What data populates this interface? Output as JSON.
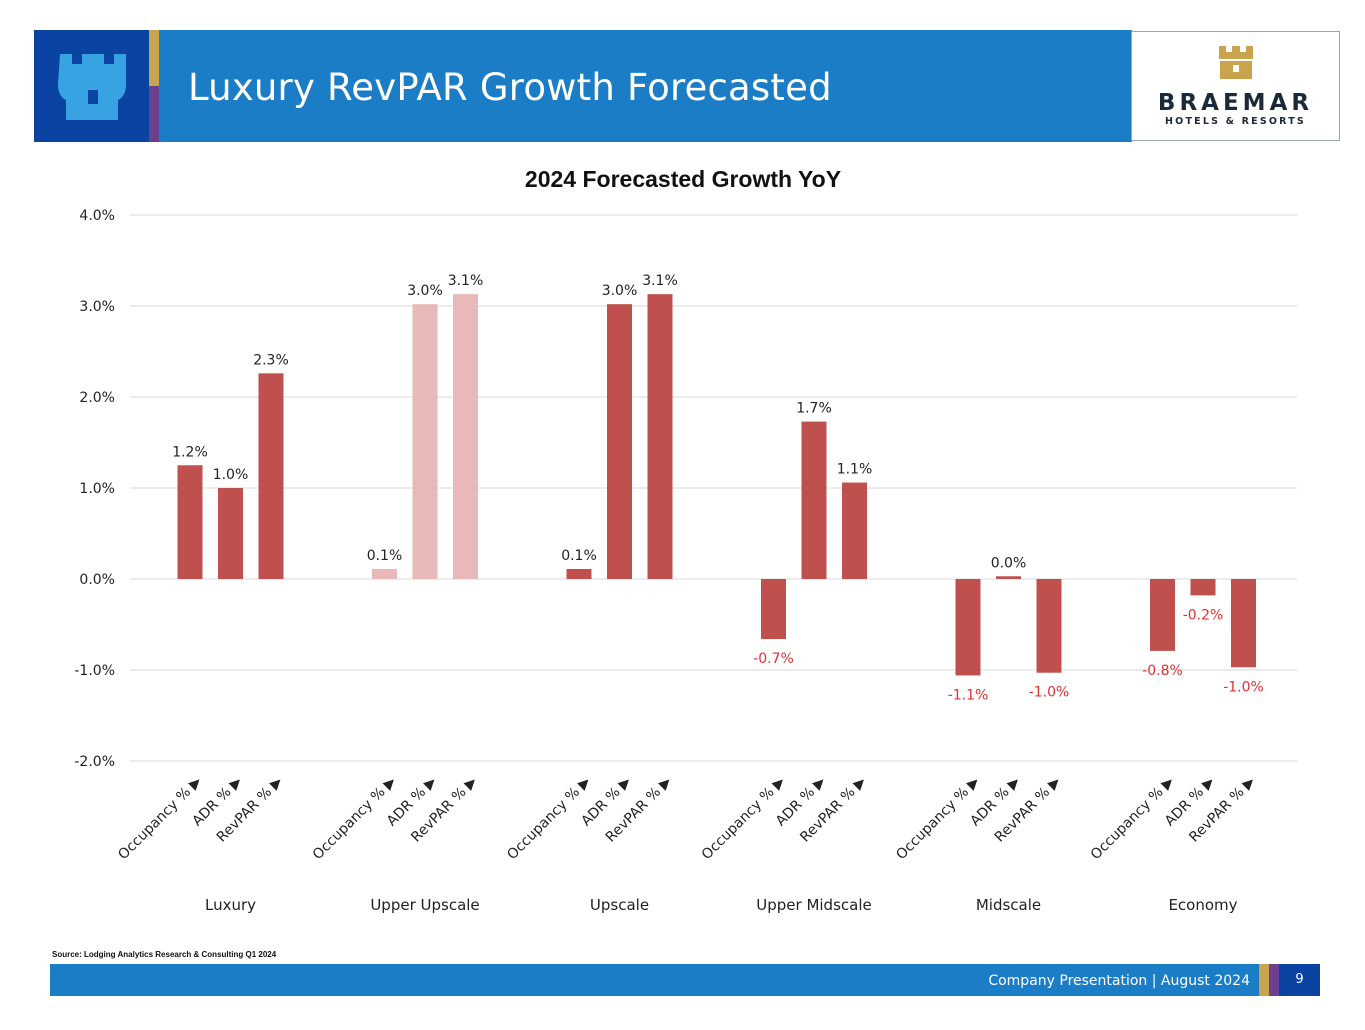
{
  "header": {
    "title": "Luxury RevPAR Growth Forecasted"
  },
  "logo": {
    "name": "BRAEMAR",
    "tagline": "HOTELS & RESORTS"
  },
  "colors": {
    "brand_blue": "#1b7dc6",
    "navy": "#0b43a3",
    "gold": "#c9a44c",
    "purple": "#6d3f8f",
    "bar_red": "#c0504d",
    "bar_pink": "#e9b8b8",
    "negative_label": "#e03131"
  },
  "chart_data": {
    "type": "bar",
    "title": "2024 Forecasted Growth YoY",
    "xlabel": "",
    "ylabel": "",
    "ylim": [
      -2.0,
      4.0
    ],
    "yticks": [
      "4.0%",
      "3.0%",
      "2.0%",
      "1.0%",
      "0.0%",
      "-1.0%",
      "-2.0%"
    ],
    "ytick_values": [
      4,
      3,
      2,
      1,
      0,
      -1,
      -2
    ],
    "grid": true,
    "groups": [
      "Luxury",
      "Upper Upscale",
      "Upscale",
      "Upper Midscale",
      "Midscale",
      "Economy"
    ],
    "metric_label_suffix": "▶",
    "series": [
      {
        "name": "Occupancy %",
        "values": [
          1.25,
          0.11,
          0.11,
          -0.66,
          -1.06,
          -0.79
        ],
        "labels": [
          "1.2%",
          "0.1%",
          "0.1%",
          "-0.7%",
          "-1.1%",
          "-0.8%"
        ]
      },
      {
        "name": "ADR %",
        "values": [
          1.0,
          3.02,
          3.02,
          1.73,
          0.03,
          -0.18
        ],
        "labels": [
          "1.0%",
          "3.0%",
          "3.0%",
          "1.7%",
          "0.0%",
          "-0.2%"
        ]
      },
      {
        "name": "RevPAR %",
        "values": [
          2.26,
          3.13,
          3.13,
          1.06,
          -1.03,
          -0.97
        ],
        "labels": [
          "2.3%",
          "3.1%",
          "3.1%",
          "1.1%",
          "-1.0%",
          "-1.0%"
        ]
      }
    ],
    "highlighted_group": "Upper Upscale"
  },
  "source": {
    "text": "Source: Lodging Analytics Research & Consulting Q1 2024"
  },
  "footer": {
    "text": "Company Presentation  |  August 2024",
    "page": "9"
  }
}
